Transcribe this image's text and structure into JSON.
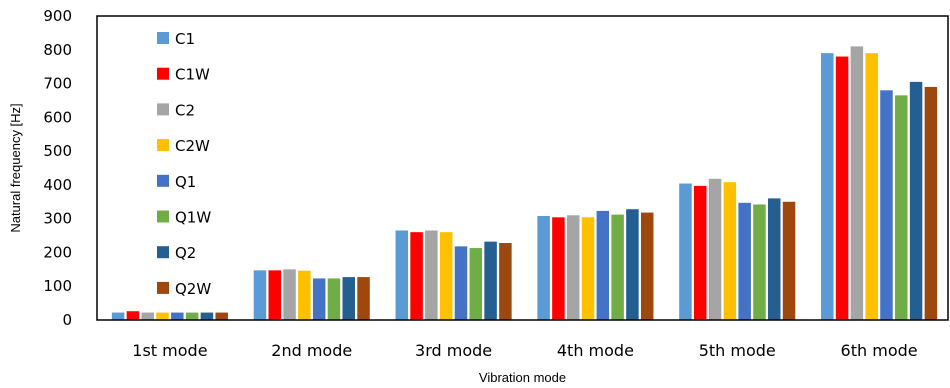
{
  "chart_data": {
    "type": "bar",
    "title": "",
    "xlabel": "Vibration mode",
    "ylabel": "Natural frequency [Hz]",
    "ylim": [
      0,
      900
    ],
    "yticks": [
      0,
      100,
      200,
      300,
      400,
      500,
      600,
      700,
      800,
      900
    ],
    "grid": false,
    "legend_position": "top-left",
    "categories": [
      "1st mode",
      "2nd mode",
      "3rd mode",
      "4th mode",
      "5th mode",
      "6th mode"
    ],
    "series": [
      {
        "name": "C1",
        "color": "#5B9BD5",
        "values": [
          22,
          147,
          265,
          308,
          404,
          790
        ]
      },
      {
        "name": "C1W",
        "color": "#FF0000",
        "values": [
          26,
          147,
          260,
          304,
          397,
          780
        ]
      },
      {
        "name": "C2",
        "color": "#A5A5A5",
        "values": [
          22,
          150,
          265,
          310,
          418,
          810
        ]
      },
      {
        "name": "C2W",
        "color": "#FFC000",
        "values": [
          22,
          146,
          260,
          304,
          408,
          790
        ]
      },
      {
        "name": "Q1",
        "color": "#4472C4",
        "values": [
          22,
          123,
          218,
          323,
          347,
          680
        ]
      },
      {
        "name": "Q1W",
        "color": "#70AD47",
        "values": [
          22,
          123,
          213,
          312,
          342,
          665
        ]
      },
      {
        "name": "Q2",
        "color": "#255E91",
        "values": [
          22,
          127,
          232,
          328,
          360,
          705
        ]
      },
      {
        "name": "Q2W",
        "color": "#9E480E",
        "values": [
          22,
          127,
          228,
          318,
          350,
          690
        ]
      }
    ]
  }
}
